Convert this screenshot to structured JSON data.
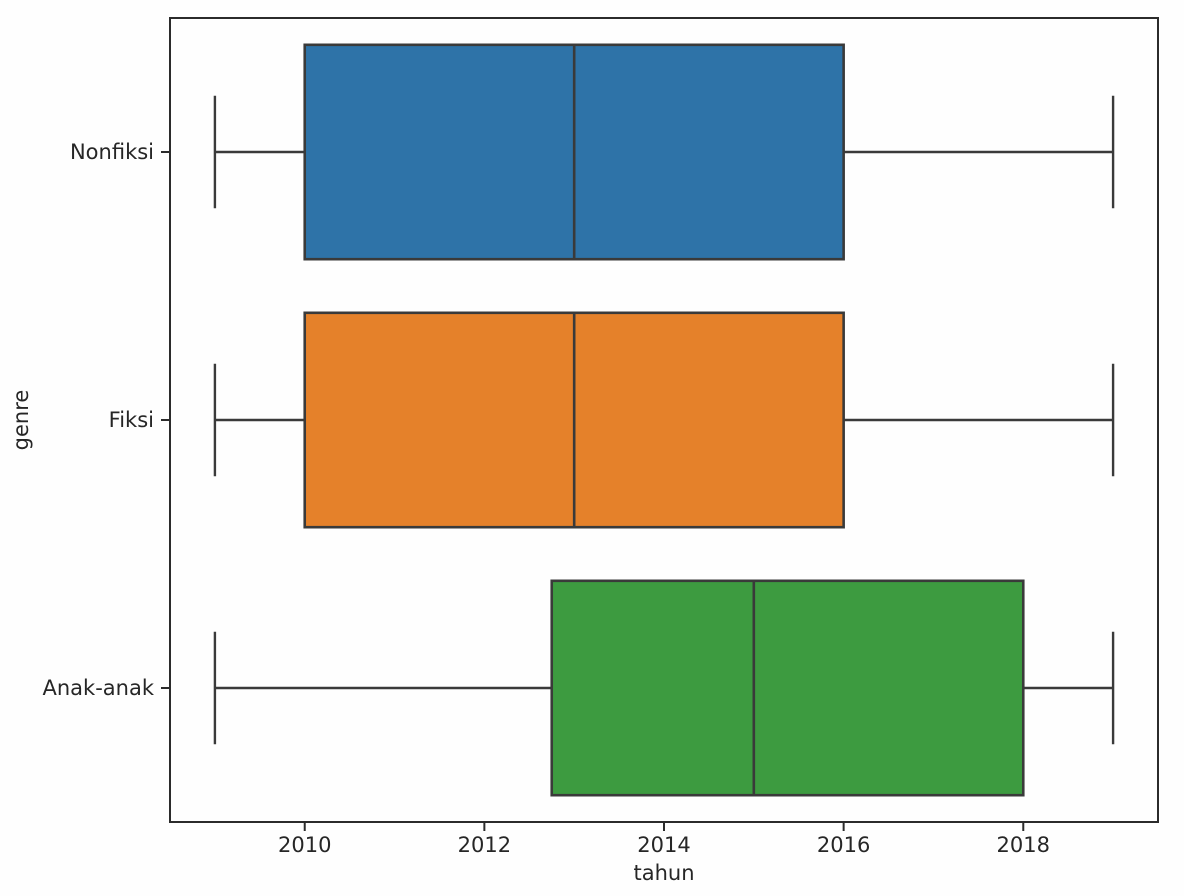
{
  "figure": {
    "background_color": "#fefefe",
    "plot_background_color": "#fefefe",
    "spine_color": "#2b2b2b",
    "line_color": "#3a3a3a",
    "text_color": "#262626"
  },
  "chart_data": {
    "type": "boxplot",
    "orientation": "horizontal",
    "title": "",
    "xlabel": "tahun",
    "ylabel": "genre",
    "categories": [
      "Nonfiksi",
      "Fiksi",
      "Anak-anak"
    ],
    "x_ticks": [
      2010,
      2012,
      2014,
      2016,
      2018
    ],
    "xlim": [
      2008.5,
      2019.5
    ],
    "grid": false,
    "legend": false,
    "series": [
      {
        "category": "Nonfiksi",
        "color": "#2e73a8",
        "whisker_low": 2009,
        "q1": 2010,
        "median": 2013,
        "q3": 2016,
        "whisker_high": 2019
      },
      {
        "category": "Fiksi",
        "color": "#e5812a",
        "whisker_low": 2009,
        "q1": 2010,
        "median": 2013,
        "q3": 2016,
        "whisker_high": 2019
      },
      {
        "category": "Anak-anak",
        "color": "#3d9b40",
        "whisker_low": 2009,
        "q1": 2012.75,
        "median": 2015,
        "q3": 2018,
        "whisker_high": 2019
      }
    ]
  }
}
